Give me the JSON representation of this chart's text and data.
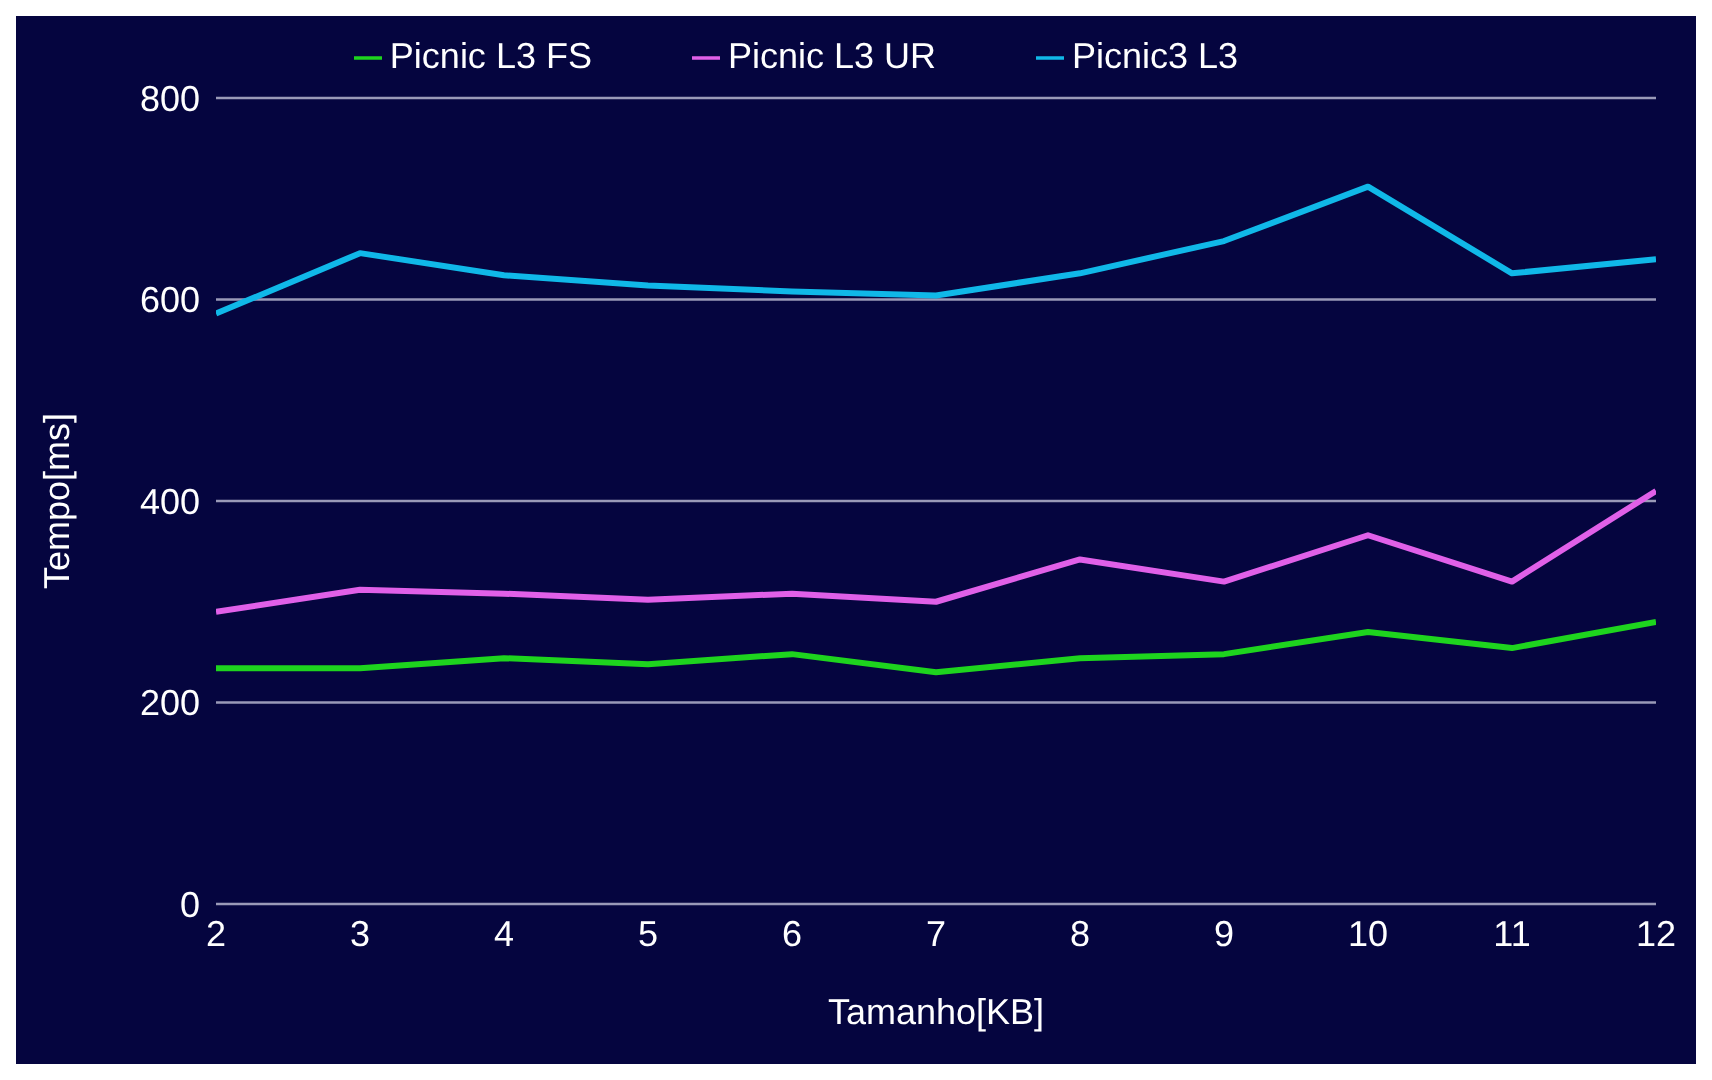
{
  "chart_data": {
    "type": "line",
    "xlabel": "Tamanho[KB]",
    "ylabel": "Tempo[ms]",
    "x": [
      2,
      3,
      4,
      5,
      6,
      7,
      8,
      9,
      10,
      11,
      12
    ],
    "series": [
      {
        "name": "Picnic L3 FS",
        "color": "#1ed41e",
        "values": [
          234,
          234,
          244,
          238,
          248,
          230,
          244,
          248,
          270,
          254,
          280
        ]
      },
      {
        "name": "Picnic L3 UR",
        "color": "#e060e8",
        "values": [
          290,
          312,
          308,
          302,
          308,
          300,
          342,
          320,
          366,
          320,
          410
        ]
      },
      {
        "name": "Picnic3 L3",
        "color": "#10b8e8",
        "values": [
          586,
          646,
          624,
          614,
          608,
          604,
          626,
          658,
          712,
          626,
          640
        ]
      }
    ],
    "xlim": [
      2,
      12
    ],
    "xticks": [
      2,
      3,
      4,
      5,
      6,
      7,
      8,
      9,
      10,
      11,
      12
    ],
    "ylim": [
      0,
      800
    ],
    "yticks": [
      0,
      200,
      400,
      600,
      800
    ],
    "grid": "y",
    "legend": "top",
    "marker": "none",
    "line_style": "solid"
  }
}
